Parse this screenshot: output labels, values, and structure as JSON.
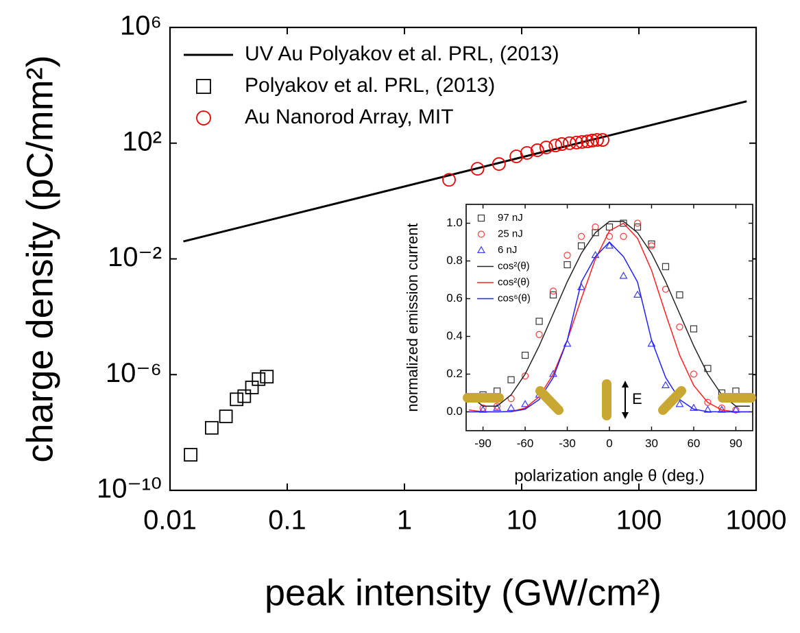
{
  "chart_data": [
    {
      "type": "scatter",
      "xlabel": "peak intensity (GW/cm²)",
      "ylabel": "charge density (pC/mm²)",
      "xlog": true,
      "ylog": true,
      "xlim": [
        0.01,
        1000
      ],
      "ylim": [
        1e-10,
        1000000
      ],
      "xticks": [
        0.01,
        0.1,
        1,
        10,
        100,
        1000
      ],
      "yticks": [
        {
          "value": 1e-10,
          "label": "10⁻¹⁰"
        },
        {
          "value": 1e-06,
          "label": "10⁻⁶"
        },
        {
          "value": 0.01,
          "label": "10⁻²"
        },
        {
          "value": 100,
          "label": "10²"
        },
        {
          "value": 1000000,
          "label": "10⁶"
        }
      ],
      "series": [
        {
          "name": "UV Au Polyakov et al. PRL, (2013)",
          "marker": "line",
          "color": "#000000",
          "x": [
            0.013,
            830
          ],
          "values": [
            0.04,
            2800
          ]
        },
        {
          "name": "Polyakov et al. PRL, (2013)",
          "marker": "square",
          "color": "#000000",
          "x": [
            0.015,
            0.0227,
            0.03,
            0.037,
            0.043,
            0.05,
            0.057,
            0.067
          ],
          "values": [
            1.7e-09,
            1.45e-08,
            3.6e-08,
            1.4e-07,
            1.8e-07,
            3.6e-07,
            7e-07,
            8.5e-07
          ]
        },
        {
          "name": "Au Nanorod Array, MIT",
          "marker": "circle",
          "color": "#ee0000",
          "x": [
            2.4,
            4.2,
            6.4,
            9,
            11.1,
            13.6,
            16.2,
            19.4,
            22,
            25.6,
            29.4,
            32.7,
            36.4,
            40,
            44,
            49
          ],
          "values": [
            5.4,
            13,
            19,
            35,
            46,
            57,
            71,
            83,
            93,
            100,
            105,
            110,
            115,
            123,
            129,
            129
          ]
        }
      ]
    },
    {
      "type": "scatter",
      "xlabel": "polarization angle θ (deg.)",
      "ylabel": "normalized emission current",
      "xlog": false,
      "ylog": false,
      "annotation": "E",
      "xlim": [
        -102,
        102
      ],
      "ylim": [
        -0.1,
        1.1
      ],
      "xticks": [
        -90,
        -60,
        -30,
        0,
        30,
        60,
        90
      ],
      "yticks": [
        {
          "value": 0,
          "label": "0.0"
        },
        0.2,
        0.4,
        0.6,
        0.8,
        {
          "value": 1,
          "label": "1.0"
        }
      ],
      "series": [
        {
          "name": "97 nJ",
          "marker": "square",
          "color": "#333333",
          "x": [
            -90,
            -80,
            -70,
            -60,
            -50,
            -40,
            -30,
            -20,
            -10,
            0,
            10,
            20,
            30,
            40,
            50,
            60,
            70,
            80,
            90
          ],
          "values": [
            0.09,
            0.11,
            0.17,
            0.3,
            0.48,
            0.62,
            0.78,
            0.88,
            0.95,
            0.98,
            1.0,
            0.98,
            0.89,
            0.77,
            0.62,
            0.44,
            0.23,
            0.1,
            0.11
          ]
        },
        {
          "name": "25 nJ",
          "marker": "circle",
          "color": "#ff3b3b",
          "x": [
            -90,
            -80,
            -70,
            -60,
            -50,
            -40,
            -30,
            -20,
            -10,
            0,
            10,
            20,
            30,
            40,
            50,
            60,
            70,
            80,
            90
          ],
          "values": [
            0.02,
            0.03,
            0.07,
            0.19,
            0.41,
            0.64,
            0.83,
            0.93,
            0.98,
            0.93,
            0.93,
            1.0,
            0.88,
            0.65,
            0.45,
            0.2,
            0.05,
            0.02,
            0.01
          ]
        },
        {
          "name": "6 nJ",
          "marker": "triangle",
          "color": "#3a3aff",
          "x": [
            -90,
            -80,
            -70,
            -60,
            -50,
            -40,
            -30,
            -20,
            -10,
            0,
            10,
            20,
            30,
            40,
            50,
            60,
            70,
            80,
            90
          ],
          "values": [
            0.01,
            0.02,
            0.02,
            0.04,
            0.09,
            0.2,
            0.36,
            0.66,
            0.83,
            0.88,
            0.72,
            0.62,
            0.36,
            0.14,
            0.04,
            0.02,
            0.01,
            0.01,
            0.01
          ]
        },
        {
          "name": "cos²(θ)",
          "marker": "line",
          "color": "#222222",
          "x": [
            -100,
            -90,
            -80,
            -70,
            -60,
            -50,
            -40,
            -30,
            -20,
            -10,
            0,
            10,
            20,
            30,
            40,
            50,
            60,
            70,
            80,
            90,
            100
          ],
          "values": [
            0.09,
            0.03,
            0.03,
            0.09,
            0.2,
            0.35,
            0.52,
            0.69,
            0.84,
            0.95,
            1.01,
            1.01,
            0.95,
            0.84,
            0.69,
            0.52,
            0.35,
            0.2,
            0.09,
            0.03,
            0.03
          ]
        },
        {
          "name": "cos²(θ)",
          "marker": "line",
          "color": "#ff2020",
          "x": [
            -100,
            -90,
            -80,
            -70,
            -60,
            -50,
            -40,
            -30,
            -20,
            -10,
            0,
            10,
            20,
            30,
            40,
            50,
            60,
            70,
            80,
            90,
            100
          ],
          "values": [
            0.01,
            0,
            0,
            0.002,
            0.02,
            0.08,
            0.2,
            0.38,
            0.6,
            0.81,
            0.96,
            1.0,
            0.92,
            0.75,
            0.52,
            0.3,
            0.14,
            0.05,
            0.01,
            0,
            0
          ]
        },
        {
          "name": "cos⁶(θ)",
          "marker": "line",
          "color": "#2020ff",
          "x": [
            -100,
            -90,
            -80,
            -70,
            -60,
            -50,
            -40,
            -30,
            -20,
            -10,
            0,
            10,
            20,
            30,
            40,
            50,
            60,
            70,
            80,
            90,
            100
          ],
          "values": [
            0,
            0,
            0,
            0.001,
            0.014,
            0.065,
            0.182,
            0.38,
            0.688,
            0.823,
            0.9,
            0.823,
            0.688,
            0.38,
            0.182,
            0.065,
            0.014,
            0.001,
            0,
            0,
            0
          ]
        }
      ]
    }
  ]
}
